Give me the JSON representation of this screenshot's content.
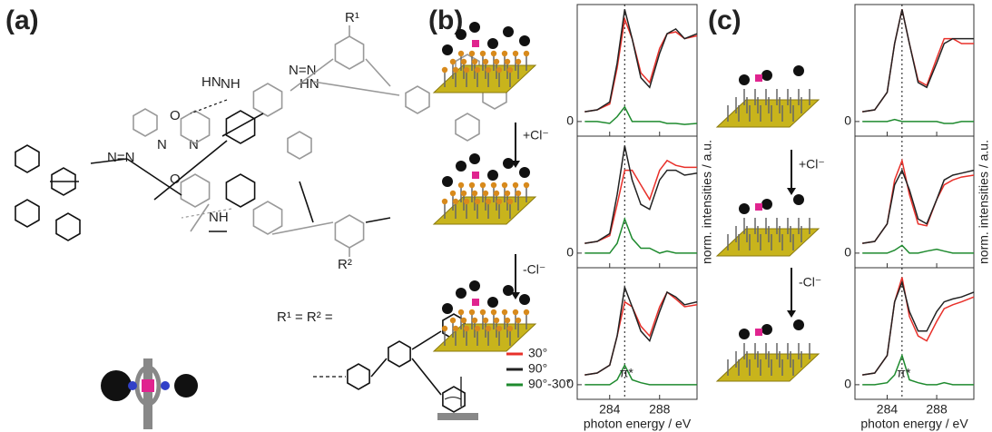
{
  "figure": {
    "panel_labels": [
      "(a)",
      "(b)",
      "(c)"
    ],
    "molecule": {
      "r1": "R¹",
      "r2": "R²",
      "substituent": "R¹ = R² =",
      "atoms": [
        "NH",
        "HN",
        "O",
        "O",
        "N",
        "N",
        "N=N",
        "N=N"
      ]
    },
    "steps": [
      "+Cl⁻",
      "-Cl⁻",
      "+Cl⁻",
      "-Cl⁻"
    ]
  },
  "chart_data": [
    {
      "type": "line",
      "xlim": [
        281.4,
        291
      ],
      "ylim": [
        -0.15,
        1.2
      ],
      "xticks": [
        284,
        288
      ],
      "yticks": [
        0
      ],
      "reference_line": 285.2,
      "x": [
        282,
        283,
        284,
        284.6,
        285.2,
        285.8,
        286.5,
        287.2,
        288,
        288.6,
        289.3,
        290,
        291
      ],
      "series": [
        {
          "color": "#e8302a",
          "values": [
            0.1,
            0.12,
            0.18,
            0.55,
            1.05,
            0.85,
            0.5,
            0.4,
            0.75,
            0.9,
            0.92,
            0.85,
            0.88
          ]
        },
        {
          "color": "#222222",
          "values": [
            0.1,
            0.12,
            0.2,
            0.6,
            1.15,
            0.85,
            0.45,
            0.35,
            0.7,
            0.9,
            0.95,
            0.85,
            0.9
          ]
        },
        {
          "color": "#1e8a2e",
          "values": [
            0,
            0,
            -0.02,
            0.05,
            0.15,
            0,
            0,
            0,
            0,
            -0.02,
            -0.02,
            -0.03,
            -0.02
          ]
        }
      ]
    },
    {
      "type": "line",
      "xlim": [
        281.4,
        291
      ],
      "ylim": [
        -0.15,
        1.2
      ],
      "xticks": [
        284,
        288
      ],
      "yticks": [
        0
      ],
      "reference_line": 285.2,
      "y_label": "norm. intensities / a.u.",
      "x": [
        282,
        283,
        284,
        284.6,
        285.2,
        285.8,
        286.5,
        287.2,
        288,
        288.6,
        289.3,
        290,
        291
      ],
      "series": [
        {
          "color": "#e8302a",
          "values": [
            0.1,
            0.12,
            0.18,
            0.5,
            0.85,
            0.85,
            0.7,
            0.55,
            0.85,
            0.95,
            0.9,
            0.88,
            0.88
          ]
        },
        {
          "color": "#222222",
          "values": [
            0.1,
            0.12,
            0.2,
            0.6,
            1.1,
            0.75,
            0.5,
            0.45,
            0.75,
            0.85,
            0.85,
            0.8,
            0.82
          ]
        },
        {
          "color": "#1e8a2e",
          "values": [
            0,
            0,
            0,
            0.1,
            0.35,
            0.15,
            0.05,
            0.05,
            0,
            0.02,
            0,
            0,
            0
          ]
        }
      ]
    },
    {
      "type": "line",
      "xlim": [
        281.4,
        291
      ],
      "ylim": [
        -0.15,
        1.2
      ],
      "xticks": [
        284,
        288
      ],
      "yticks": [
        0
      ],
      "reference_line": 285.2,
      "x_label": "photon energy / eV",
      "annotation": "π*",
      "legend": "left",
      "x": [
        282,
        283,
        284,
        284.6,
        285.2,
        285.8,
        286.5,
        287.2,
        288,
        288.6,
        289.3,
        290,
        291
      ],
      "series": [
        {
          "name": "30°",
          "color": "#e8302a",
          "values": [
            0.1,
            0.12,
            0.2,
            0.5,
            0.85,
            0.8,
            0.6,
            0.5,
            0.8,
            0.95,
            0.88,
            0.8,
            0.82
          ]
        },
        {
          "name": "90°",
          "color": "#222222",
          "values": [
            0.1,
            0.12,
            0.2,
            0.5,
            1.0,
            0.8,
            0.55,
            0.45,
            0.75,
            0.95,
            0.9,
            0.82,
            0.85
          ]
        },
        {
          "name": "90°-30°",
          "color": "#1e8a2e",
          "values": [
            0,
            0,
            0,
            0.05,
            0.2,
            0.05,
            0.02,
            0,
            0,
            0,
            0,
            0,
            0
          ]
        }
      ]
    },
    {
      "type": "line",
      "xlim": [
        281.4,
        291
      ],
      "ylim": [
        -0.15,
        1.2
      ],
      "xticks": [
        284,
        288
      ],
      "yticks": [
        0
      ],
      "reference_line": 285.2,
      "x": [
        282,
        283,
        284,
        284.6,
        285.2,
        285.8,
        286.5,
        287.2,
        288,
        288.6,
        289.3,
        290,
        291
      ],
      "series": [
        {
          "color": "#e8302a",
          "values": [
            0.1,
            0.12,
            0.3,
            0.8,
            1.15,
            0.8,
            0.42,
            0.37,
            0.65,
            0.85,
            0.85,
            0.8,
            0.8
          ]
        },
        {
          "color": "#222222",
          "values": [
            0.1,
            0.12,
            0.3,
            0.8,
            1.15,
            0.8,
            0.4,
            0.35,
            0.6,
            0.8,
            0.85,
            0.85,
            0.85
          ]
        },
        {
          "color": "#1e8a2e",
          "values": [
            0,
            0,
            0,
            0.02,
            0,
            0,
            0,
            0,
            0,
            -0.02,
            -0.02,
            0,
            0
          ]
        }
      ]
    },
    {
      "type": "line",
      "xlim": [
        281.4,
        291
      ],
      "ylim": [
        -0.15,
        1.2
      ],
      "xticks": [
        284,
        288
      ],
      "yticks": [
        0
      ],
      "reference_line": 285.2,
      "y_label": "norm. intensities / a.u.",
      "x": [
        282,
        283,
        284,
        284.6,
        285.2,
        285.8,
        286.5,
        287.2,
        288,
        288.6,
        289.3,
        290,
        291
      ],
      "series": [
        {
          "color": "#e8302a",
          "values": [
            0.1,
            0.12,
            0.3,
            0.75,
            0.95,
            0.6,
            0.3,
            0.28,
            0.55,
            0.7,
            0.75,
            0.78,
            0.8
          ]
        },
        {
          "color": "#222222",
          "values": [
            0.1,
            0.12,
            0.3,
            0.7,
            0.85,
            0.65,
            0.35,
            0.3,
            0.55,
            0.75,
            0.8,
            0.82,
            0.85
          ]
        },
        {
          "color": "#1e8a2e",
          "values": [
            0,
            0,
            0,
            0.03,
            0.08,
            0,
            0,
            0.02,
            0.04,
            0.02,
            0,
            0,
            0
          ]
        }
      ]
    },
    {
      "type": "line",
      "xlim": [
        281.4,
        291
      ],
      "ylim": [
        -0.15,
        1.2
      ],
      "xticks": [
        284,
        288
      ],
      "yticks": [
        0
      ],
      "reference_line": 285.2,
      "x_label": "photon energy / eV",
      "annotation": "π*",
      "x": [
        282,
        283,
        284,
        284.6,
        285.2,
        285.8,
        286.5,
        287.2,
        288,
        288.6,
        289.3,
        290,
        291
      ],
      "series": [
        {
          "color": "#e8302a",
          "values": [
            0.1,
            0.12,
            0.3,
            0.85,
            1.1,
            0.7,
            0.5,
            0.45,
            0.65,
            0.78,
            0.82,
            0.85,
            0.9
          ]
        },
        {
          "color": "#222222",
          "values": [
            0.1,
            0.12,
            0.3,
            0.85,
            1.05,
            0.75,
            0.55,
            0.55,
            0.75,
            0.85,
            0.88,
            0.9,
            0.95
          ]
        },
        {
          "color": "#1e8a2e",
          "values": [
            0,
            0,
            0.02,
            0.1,
            0.3,
            0.05,
            0.02,
            0,
            0,
            0.02,
            0,
            0,
            0
          ]
        }
      ]
    }
  ]
}
